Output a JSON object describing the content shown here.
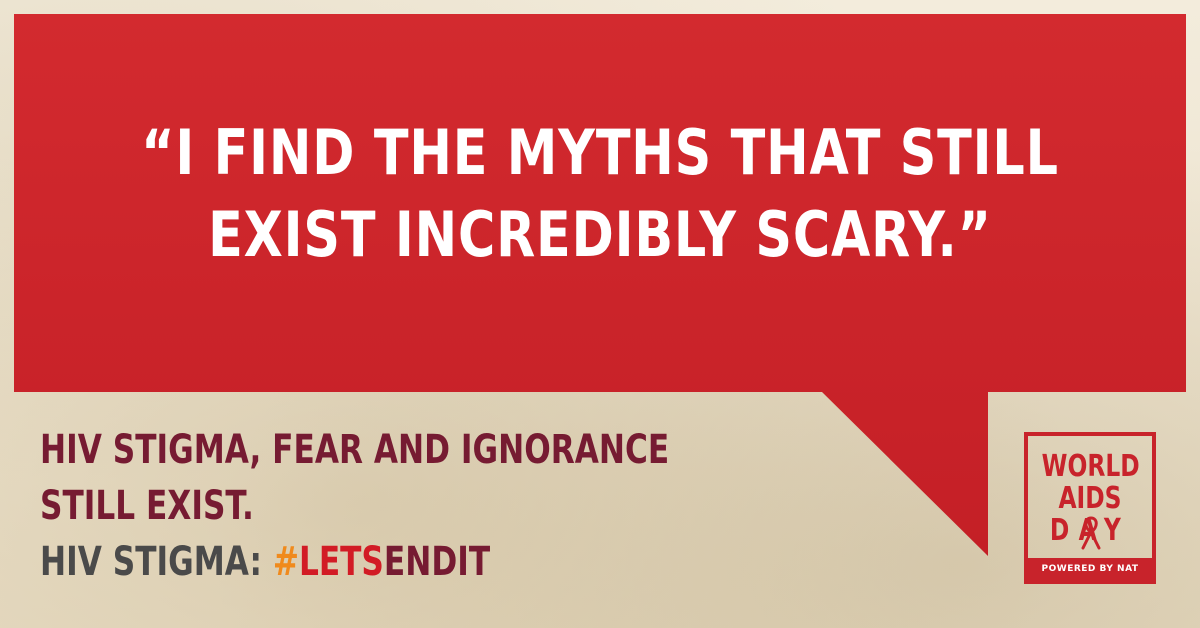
{
  "quote": {
    "line1": "“I FIND THE MYTHS THAT STILL",
    "line2": "EXIST INCREDIBLY SCARY.”"
  },
  "tagline": {
    "line1": "HIV STIGMA, FEAR AND IGNORANCE",
    "line2": "STILL EXIST.",
    "line3_prefix": "HIV STIGMA: ",
    "hashtag_hash": "#",
    "hashtag_lets": "LETS",
    "hashtag_endit": "ENDIT"
  },
  "logo": {
    "word1": "WORLD",
    "word2": "AIDS",
    "word3": "DAY",
    "powered_by": "POWERED BY NAT"
  },
  "colors": {
    "bubble_red": "#c8232b",
    "maroon": "#761b32",
    "orange": "#f08a1c",
    "grey": "#4a4a4a"
  }
}
